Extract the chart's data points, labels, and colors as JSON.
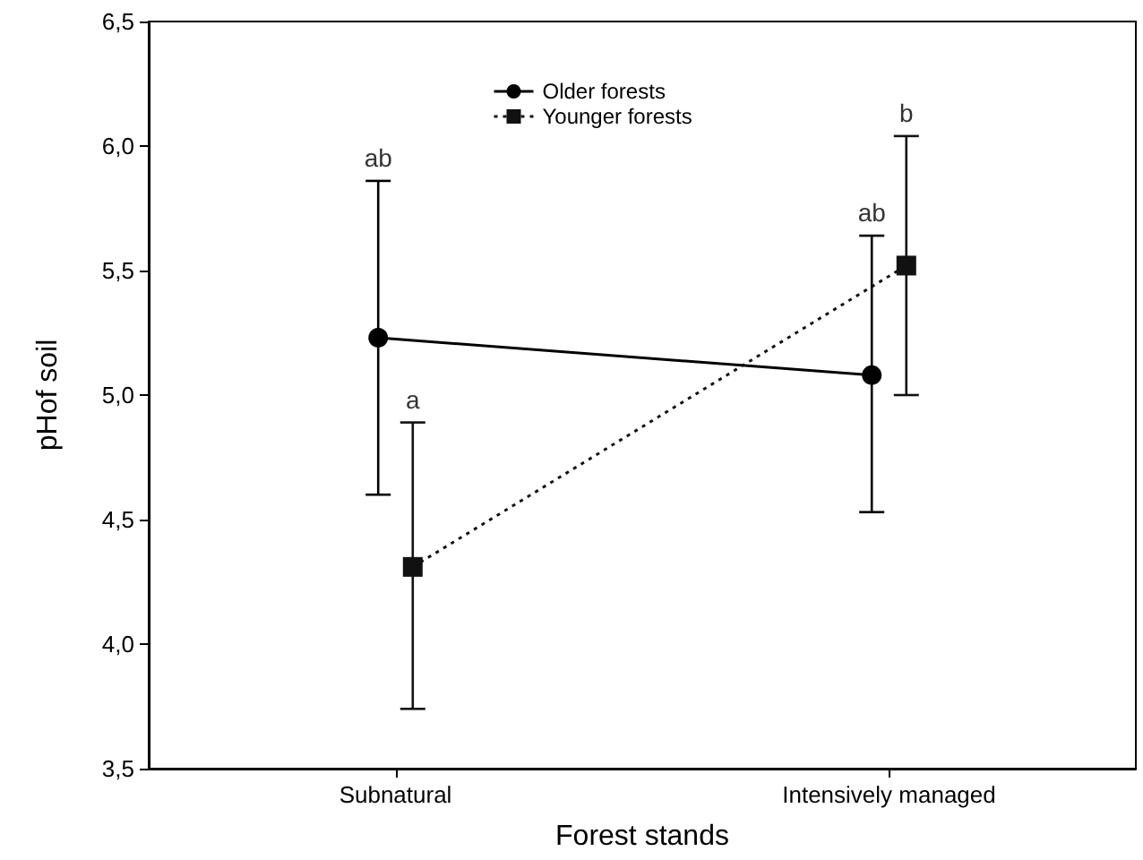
{
  "chart_data": {
    "type": "line",
    "xlabel": "Forest stands",
    "ylabel": "pHof soil",
    "categories": [
      "Subnatural",
      "Intensively managed"
    ],
    "series": [
      {
        "name": "Older forests",
        "color": "#000000",
        "marker": "circle",
        "line_style": "solid",
        "values": [
          5.23,
          5.08
        ],
        "errors": [
          [
            4.6,
            5.86
          ],
          [
            4.53,
            5.64
          ]
        ]
      },
      {
        "name": "Younger forests",
        "color": "#111111",
        "marker": "square",
        "line_style": "dotted",
        "values": [
          4.31,
          5.52
        ],
        "errors": [
          [
            3.74,
            4.89
          ],
          [
            5.0,
            6.04
          ]
        ]
      }
    ],
    "ylim": [
      3.5,
      6.5
    ],
    "yticks": [
      {
        "value": 3.5,
        "label": "3,5"
      },
      {
        "value": 4.0,
        "label": "4,0"
      },
      {
        "value": 4.5,
        "label": "4,5"
      },
      {
        "value": 5.0,
        "label": "5,0"
      },
      {
        "value": 5.5,
        "label": "5,5"
      },
      {
        "value": 6.0,
        "label": "6,0"
      },
      {
        "value": 6.5,
        "label": "6,5"
      }
    ],
    "annotations": [
      {
        "text": "ab",
        "x": "Subnatural",
        "y": 5.86
      },
      {
        "text": "a",
        "x": "Subnatural",
        "y": 4.89
      },
      {
        "text": "ab",
        "x": "Intensively managed",
        "y": 5.64
      },
      {
        "text": "b",
        "x": "Intensively managed",
        "y": 6.04
      }
    ],
    "grid": false,
    "legend": "top"
  }
}
